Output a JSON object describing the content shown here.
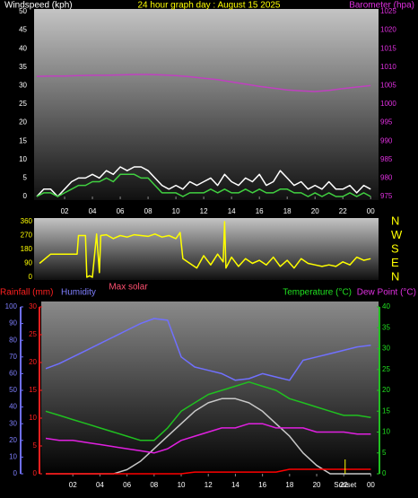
{
  "chart_data": [
    {
      "type": "line",
      "title": "24 hour graph day : August 15 2025",
      "y_label": "Windspeed (kph)",
      "y2_label": "Barometer (hpa)",
      "xlim": [
        0,
        24.5
      ],
      "xticks": [
        {
          "value": 2,
          "label": "02"
        },
        {
          "value": 4,
          "label": "04"
        },
        {
          "value": 6,
          "label": "06"
        },
        {
          "value": 8,
          "label": "08"
        },
        10,
        12,
        14,
        16,
        18,
        20,
        22,
        {
          "value": 24,
          "label": "00"
        }
      ],
      "ylim": [
        0,
        50
      ],
      "yticks": [
        0,
        5,
        10,
        15,
        20,
        25,
        30,
        35,
        40,
        45,
        50
      ],
      "y2lim": [
        975,
        1025
      ],
      "y2ticks": [
        975,
        980,
        985,
        990,
        995,
        1000,
        1005,
        1010,
        1015,
        1020,
        1025
      ],
      "series": [
        {
          "color": "#ffffff",
          "x": [
            0,
            0.5,
            1,
            1.5,
            2,
            2.5,
            3,
            3.5,
            4,
            4.5,
            5,
            5.5,
            6,
            6.5,
            7,
            7.5,
            8,
            8.5,
            9,
            9.5,
            10,
            10.5,
            11,
            11.5,
            12,
            12.5,
            13,
            13.5,
            14,
            14.5,
            15,
            15.5,
            16,
            16.5,
            17,
            17.5,
            18,
            18.5,
            19,
            19.5,
            20,
            20.5,
            21,
            21.5,
            22,
            22.5,
            23,
            23.5,
            24
          ],
          "values": [
            0,
            2,
            2,
            0,
            2,
            4,
            5,
            5,
            6,
            5,
            7,
            6,
            8,
            7,
            8,
            8,
            7,
            5,
            3,
            2,
            3,
            2,
            4,
            3,
            4,
            5,
            3,
            6,
            4,
            3,
            5,
            4,
            6,
            3,
            4,
            7,
            5,
            3,
            4,
            2,
            3,
            2,
            4,
            2,
            2,
            3,
            1,
            3,
            2
          ]
        },
        {
          "color": "#40d040",
          "x": [
            0,
            0.5,
            1,
            1.5,
            2,
            2.5,
            3,
            3.5,
            4,
            4.5,
            5,
            5.5,
            6,
            6.5,
            7,
            7.5,
            8,
            8.5,
            9,
            9.5,
            10,
            10.5,
            11,
            11.5,
            12,
            12.5,
            13,
            13.5,
            14,
            14.5,
            15,
            15.5,
            16,
            16.5,
            17,
            17.5,
            18,
            18.5,
            19,
            19.5,
            20,
            20.5,
            21,
            21.5,
            22,
            22.5,
            23,
            23.5,
            24
          ],
          "values": [
            0,
            1,
            1,
            0,
            1,
            2,
            3,
            3,
            4,
            4,
            5,
            4,
            6,
            6,
            6,
            5,
            5,
            3,
            1,
            1,
            1,
            0,
            1,
            1,
            1,
            2,
            1,
            2,
            1,
            1,
            2,
            1,
            2,
            1,
            1,
            2,
            2,
            1,
            1,
            0,
            1,
            0,
            1,
            0,
            0,
            1,
            0,
            1,
            0
          ]
        },
        {
          "color": "#c040c0",
          "axis": "y2",
          "x": [
            0,
            1,
            2,
            3,
            4,
            5,
            6,
            7,
            8,
            9,
            10,
            11,
            12,
            13,
            14,
            15,
            16,
            17,
            18,
            19,
            20,
            21,
            22,
            23,
            24
          ],
          "values": [
            1007.5,
            1007.6,
            1007.6,
            1007.7,
            1007.8,
            1007.8,
            1007.9,
            1008,
            1008,
            1007.9,
            1007.7,
            1007.4,
            1007,
            1006.6,
            1006,
            1005.4,
            1004.8,
            1004.3,
            1003.8,
            1003.6,
            1003.4,
            1003.7,
            1004.2,
            1004.6,
            1005
          ]
        }
      ]
    },
    {
      "type": "line",
      "xlim": [
        0,
        24.5
      ],
      "ylim": [
        0,
        360
      ],
      "yticks": [
        0,
        90,
        180,
        270,
        360
      ],
      "y2lim": [
        0,
        360
      ],
      "y2ticks": [
        {
          "value": 0,
          "label": "N"
        },
        {
          "value": 90,
          "label": "E"
        },
        {
          "value": 180,
          "label": "S"
        },
        {
          "value": 270,
          "label": "W"
        },
        {
          "value": 360,
          "label": "N"
        }
      ],
      "series": [
        {
          "color": "#ffff00",
          "x": [
            0.2,
            1,
            2,
            2.9,
            3,
            3.5,
            3.6,
            3.8,
            4,
            4.3,
            4.5,
            4.6,
            5,
            5.5,
            6,
            6.5,
            7,
            7.5,
            8,
            8.5,
            9,
            9.5,
            10,
            10.3,
            10.5,
            11,
            11.5,
            12,
            12.5,
            13,
            13.4,
            13.5,
            13.6,
            14,
            14.5,
            15,
            15.5,
            16,
            16.5,
            17,
            17.5,
            18,
            18.5,
            19,
            19.5,
            20,
            20.5,
            21,
            21.5,
            22,
            22.5,
            23,
            23.5,
            24
          ],
          "values": [
            90,
            150,
            150,
            150,
            270,
            270,
            0,
            10,
            0,
            280,
            30,
            270,
            275,
            250,
            270,
            260,
            275,
            270,
            265,
            280,
            260,
            270,
            250,
            290,
            120,
            90,
            60,
            140,
            80,
            150,
            100,
            360,
            60,
            130,
            70,
            120,
            90,
            110,
            80,
            130,
            70,
            110,
            60,
            120,
            90,
            80,
            70,
            80,
            70,
            100,
            80,
            130,
            110,
            120
          ]
        }
      ]
    },
    {
      "type": "line",
      "y_label": "Humidity",
      "y2_label": "Rainfall (mm)",
      "y3_label": "Temperature (°C)",
      "dew_label": "Dew Point (°C)",
      "solar_label": "Max solar",
      "annotations": [
        {
          "text": "Sunset",
          "x": 22.1
        }
      ],
      "xlim": [
        0,
        24.5
      ],
      "xticks": [
        {
          "value": 2,
          "label": "02"
        },
        {
          "value": 4,
          "label": "04"
        },
        {
          "value": 6,
          "label": "06"
        },
        {
          "value": 8,
          "label": "08"
        },
        10,
        12,
        14,
        16,
        18,
        20,
        22,
        {
          "value": 24,
          "label": "00"
        }
      ],
      "ylim": [
        0,
        100
      ],
      "yticks": [
        0,
        10,
        20,
        30,
        40,
        50,
        60,
        70,
        80,
        90,
        100
      ],
      "y2lim": [
        0,
        30
      ],
      "y2ticks": [
        0,
        5,
        10,
        15,
        20,
        25,
        30
      ],
      "y3lim": [
        0,
        40
      ],
      "y3ticks": [
        0,
        5,
        10,
        15,
        20,
        25,
        30,
        35,
        40
      ],
      "x": [
        0,
        1,
        2,
        3,
        4,
        5,
        6,
        7,
        8,
        9,
        10,
        11,
        12,
        13,
        14,
        15,
        16,
        17,
        18,
        19,
        20,
        21,
        22,
        23,
        24
      ],
      "series": [
        {
          "color": "#c8c8c8",
          "axis": "y3",
          "values": [
            0,
            0,
            0,
            0,
            0,
            0,
            1,
            3,
            6,
            9,
            12,
            15,
            17,
            18,
            18,
            17,
            15,
            12,
            9,
            5,
            2,
            0,
            0,
            0,
            0
          ]
        },
        {
          "color": "#7070ff",
          "axis": "y",
          "values": [
            63,
            66,
            70,
            74,
            78,
            82,
            86,
            90,
            93,
            92,
            70,
            64,
            62,
            60,
            56,
            57,
            60,
            58,
            56,
            68,
            70,
            72,
            74,
            76,
            77
          ]
        },
        {
          "color": "#20c020",
          "axis": "y3",
          "values": [
            15,
            14,
            13,
            12,
            11,
            10,
            9,
            8,
            8,
            11,
            15,
            17,
            19,
            20,
            21,
            22,
            21,
            20,
            18,
            17,
            16,
            15,
            14,
            14,
            13.5
          ]
        },
        {
          "color": "#e020e0",
          "axis": "y3",
          "values": [
            8.5,
            8,
            8,
            7.5,
            7,
            6.5,
            6,
            5.5,
            5,
            6,
            8,
            9,
            10,
            11,
            11,
            12,
            12,
            11,
            11,
            11,
            10,
            10,
            10,
            9.5,
            9.5
          ]
        },
        {
          "color": "#ff0000",
          "axis": "y2",
          "values": [
            0,
            0,
            0,
            0,
            0,
            0,
            0,
            0,
            0,
            0,
            0,
            0.3,
            0.3,
            0.3,
            0.3,
            0.3,
            0.3,
            0.3,
            0.8,
            0.8,
            0.8,
            0.8,
            0.8,
            0.8,
            0.8
          ]
        }
      ]
    }
  ]
}
